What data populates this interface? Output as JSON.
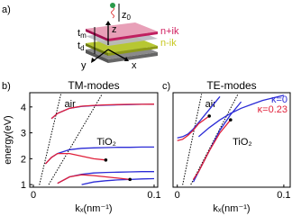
{
  "diagram": {
    "panel": "a)",
    "z0": "z",
    "z0_sub": "0",
    "z": "z",
    "tm": "t",
    "tm_sub": "m",
    "td": "t",
    "td_sub": "d",
    "top_layer": "n+ik",
    "bottom_layer": "n-ik",
    "y": "y",
    "x": "x"
  },
  "chart_data": [
    {
      "type": "line",
      "panel": "b)",
      "title": "TM-modes",
      "y_label": "energy(eV)",
      "x_label": "kₓ(nm⁻¹)",
      "xlim": [
        -0.003,
        0.103
      ],
      "ylim": [
        0.9,
        4.55
      ],
      "xticks": [
        0,
        0.1
      ],
      "yticks": [
        1,
        2,
        3,
        4
      ],
      "x": [
        0,
        0.005,
        0.01,
        0.015,
        0.02,
        0.03,
        0.04,
        0.05,
        0.06,
        0.07,
        0.08,
        0.09,
        0.1
      ],
      "light_lines": [
        {
          "label": "air",
          "x": [
            0.005,
            0.0228
          ],
          "values": [
            0.99,
            4.5
          ]
        },
        {
          "label": "TiO₂",
          "x": [
            0.0127,
            0.057
          ],
          "values": [
            1,
            4.5
          ]
        }
      ],
      "series": [
        {
          "color": "#2b2bd6",
          "values": [
            [
              null,
              null,
              null,
              3.55,
              3.75,
              3.95,
              4.02,
              4.05,
              4.07,
              4.08,
              4.09,
              4.1,
              4.1
            ],
            [
              null,
              null,
              1.8,
              2.05,
              2.2,
              2.35,
              2.4,
              2.42,
              2.43,
              2.44,
              2.44,
              2.45,
              2.45
            ],
            [
              null,
              null,
              null,
              null,
              1.05,
              1.3,
              1.4,
              1.45,
              1.47,
              1.48,
              1.49,
              1.5,
              1.5
            ],
            [
              null,
              null,
              null,
              null,
              null,
              null,
              1.0,
              1.1,
              1.15,
              1.18,
              1.2,
              1.22,
              1.23
            ]
          ]
        },
        {
          "color": "#e0203a",
          "values": [
            [
              null,
              null,
              null,
              3.55,
              3.75,
              3.95,
              4.03,
              4.06,
              4.08,
              4.09,
              4.1,
              4.1,
              4.11
            ],
            [
              null,
              null,
              1.8,
              2.05,
              2.2,
              2.2,
              2.1,
              2.0,
              1.95,
              null,
              null,
              null,
              null
            ],
            [
              null,
              null,
              null,
              null,
              1.05,
              1.3,
              1.38,
              1.35,
              1.3,
              1.25,
              1.2,
              null,
              null
            ]
          ]
        }
      ]
    },
    {
      "type": "line",
      "panel": "c)",
      "title": "TE-modes",
      "x_label": "kₓ(nm⁻¹)",
      "xlim": [
        -0.004,
        0.106
      ],
      "ylim": [
        0.9,
        4.55
      ],
      "xticks": [
        0,
        0.1
      ],
      "x": [
        0,
        0.005,
        0.01,
        0.015,
        0.02,
        0.03,
        0.04,
        0.05,
        0.06,
        0.07,
        0.08,
        0.09,
        0.1
      ],
      "light_lines": [
        {
          "label": "air",
          "x": [
            0.005,
            0.0228
          ],
          "values": [
            0.99,
            4.5
          ]
        },
        {
          "label": "TiO₂",
          "x": [
            0.0127,
            0.057
          ],
          "values": [
            1,
            4.5
          ]
        }
      ],
      "series": [
        {
          "name": "κ=0",
          "color": "#2b2bd6",
          "values": [
            [
              2.8,
              2.85,
              2.95,
              3.15,
              3.4,
              3.9,
              4.4,
              null,
              null,
              null,
              null,
              null,
              null
            ],
            [
              null,
              null,
              null,
              null,
              2.85,
              3.2,
              3.5,
              3.75,
              3.95,
              4.1,
              4.25,
              4.35,
              4.45
            ],
            [
              null,
              null,
              null,
              1.1,
              1.5,
              2.3,
              3.1,
              3.7,
              4.2,
              null,
              null,
              null,
              null
            ]
          ]
        },
        {
          "name": "κ=0.23",
          "color": "#e0203a",
          "values": [
            [
              2.7,
              2.75,
              2.9,
              3.1,
              3.35,
              3.65,
              null,
              null,
              null,
              null,
              null,
              null,
              null
            ],
            [
              null,
              null,
              null,
              1.2,
              1.5,
              2.3,
              3.0,
              3.5,
              null,
              null,
              null,
              null,
              null
            ]
          ]
        }
      ]
    }
  ]
}
